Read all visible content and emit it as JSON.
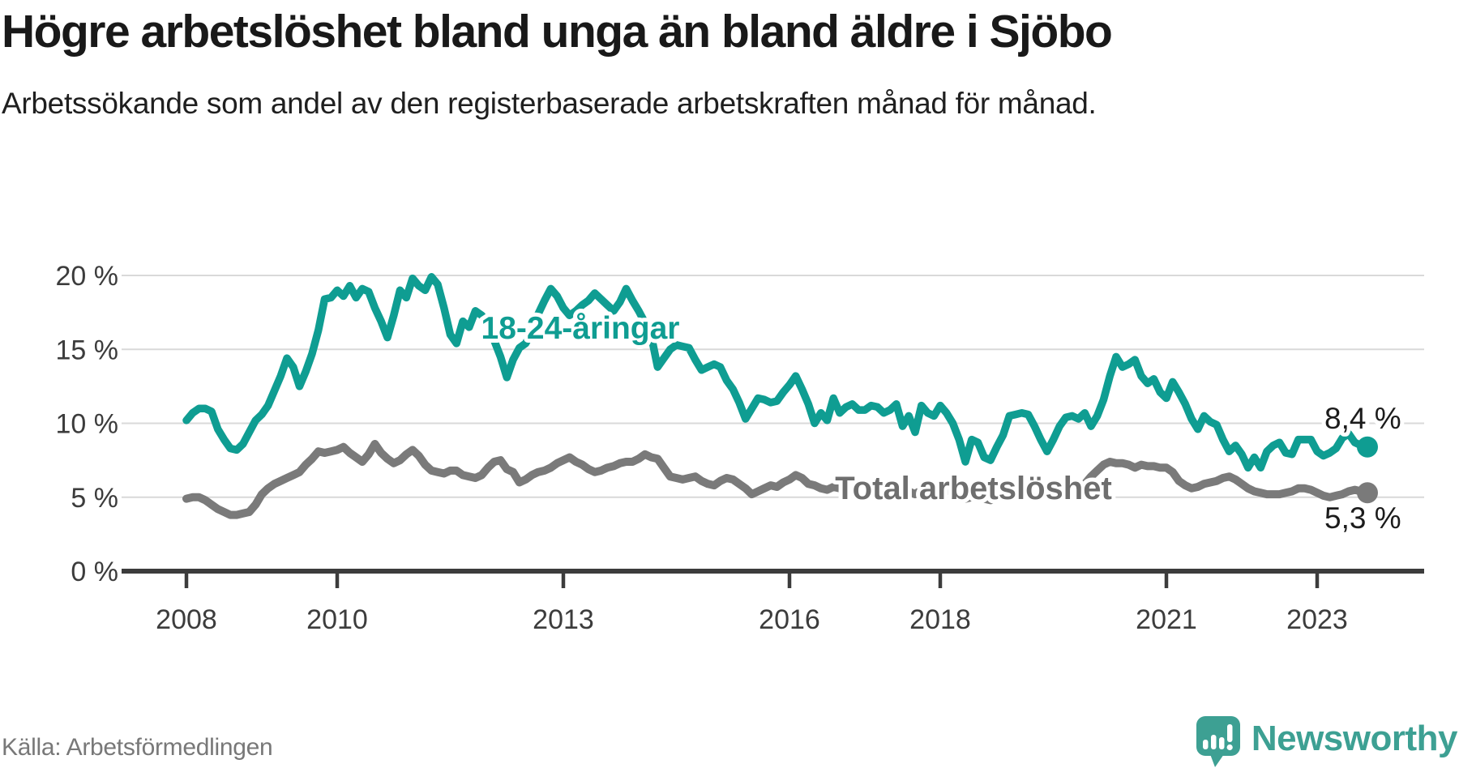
{
  "header": {
    "title": "Högre arbetslöshet bland unga än bland äldre i Sjöbo",
    "subtitle": "Arbetssökande som andel av den registerbaserade arbetskraften månad för månad."
  },
  "footer": {
    "source": "Källa: Arbetsförmedlingen",
    "brand_name": "Newsworthy",
    "brand_color": "#3da093"
  },
  "chart_data": {
    "type": "line",
    "x_start_year": 2008,
    "x_step_months": 1,
    "xlim": [
      2007.14,
      2024.42
    ],
    "ylim": [
      0,
      21.8
    ],
    "grid": true,
    "legend_position": "inline-labels",
    "yticks": {
      "values": [
        0,
        5,
        10,
        15,
        20
      ],
      "labels": [
        "0 %",
        "5 %",
        "10 %",
        "15 %",
        "20 %"
      ]
    },
    "xticks": {
      "values": [
        2008,
        2010,
        2013,
        2016,
        2018,
        2021,
        2023
      ],
      "labels": [
        "2008",
        "2010",
        "2013",
        "2016",
        "2018",
        "2021",
        "2023"
      ]
    },
    "grid_color": "#d9d9d9",
    "axis_color": "#3c3c3c",
    "tick_label_color": "#3c3c3c",
    "value_label_color": "#1c1c1c",
    "series": [
      {
        "name": "18-24-åringar",
        "color": "#0f9d92",
        "end_label": "8,4 %",
        "end_value": 8.4,
        "values": [
          10.2,
          10.7,
          11.0,
          11.0,
          10.8,
          9.6,
          8.9,
          8.3,
          8.2,
          8.6,
          9.4,
          10.2,
          10.6,
          11.2,
          12.2,
          13.2,
          14.4,
          13.8,
          12.5,
          13.5,
          14.7,
          16.3,
          18.4,
          18.5,
          19.0,
          18.6,
          19.3,
          18.5,
          19.1,
          18.9,
          17.8,
          16.9,
          15.8,
          17.3,
          19.0,
          18.5,
          19.8,
          19.3,
          19.0,
          19.9,
          19.4,
          17.8,
          16.0,
          15.4,
          16.9,
          16.5,
          17.6,
          17.3,
          16.8,
          15.6,
          14.5,
          13.1,
          14.3,
          15.1,
          15.4,
          16.2,
          17.4,
          18.3,
          19.1,
          18.6,
          17.8,
          17.3,
          17.6,
          18.0,
          18.3,
          18.8,
          18.4,
          18.0,
          17.6,
          18.2,
          19.1,
          18.3,
          17.6,
          16.8,
          15.9,
          13.8,
          14.4,
          15.0,
          15.3,
          15.2,
          15.1,
          14.3,
          13.6,
          13.8,
          14.0,
          13.8,
          12.9,
          12.3,
          11.4,
          10.3,
          11.0,
          11.7,
          11.6,
          11.4,
          11.5,
          12.1,
          12.6,
          13.2,
          12.3,
          11.3,
          10.0,
          10.7,
          10.2,
          11.7,
          10.7,
          11.1,
          11.3,
          10.9,
          10.9,
          11.2,
          11.1,
          10.7,
          10.9,
          11.3,
          9.8,
          10.5,
          9.4,
          11.2,
          10.7,
          10.5,
          11.2,
          10.7,
          10.0,
          8.9,
          7.4,
          8.9,
          8.7,
          7.7,
          7.5,
          8.4,
          9.2,
          10.5,
          10.6,
          10.7,
          10.6,
          9.8,
          8.9,
          8.1,
          8.9,
          9.8,
          10.4,
          10.5,
          10.3,
          10.7,
          9.8,
          10.5,
          11.6,
          13.2,
          14.5,
          13.8,
          14.0,
          14.3,
          13.2,
          12.7,
          13.0,
          12.1,
          11.7,
          12.8,
          12.1,
          11.3,
          10.3,
          9.6,
          10.5,
          10.1,
          9.9,
          8.9,
          8.1,
          8.5,
          7.9,
          7.0,
          7.7,
          7.0,
          8.1,
          8.5,
          8.7,
          8.0,
          7.9,
          8.9,
          8.9,
          8.9,
          8.1,
          7.8,
          8.0,
          8.3,
          9.0,
          9.3,
          8.7,
          8.5,
          8.4
        ]
      },
      {
        "name": "Total arbetslöshet",
        "color": "#7a7a7a",
        "end_label": "5,3 %",
        "end_value": 5.3,
        "values": [
          4.9,
          5.0,
          5.0,
          4.8,
          4.5,
          4.2,
          4.0,
          3.8,
          3.8,
          3.9,
          4.0,
          4.5,
          5.2,
          5.6,
          5.9,
          6.1,
          6.3,
          6.5,
          6.7,
          7.2,
          7.6,
          8.1,
          8.0,
          8.1,
          8.2,
          8.4,
          8.0,
          7.7,
          7.4,
          7.9,
          8.6,
          8.0,
          7.6,
          7.3,
          7.5,
          7.9,
          8.2,
          7.8,
          7.2,
          6.8,
          6.7,
          6.6,
          6.8,
          6.8,
          6.5,
          6.4,
          6.3,
          6.5,
          7.0,
          7.4,
          7.5,
          6.9,
          6.7,
          6.0,
          6.2,
          6.5,
          6.7,
          6.8,
          7.0,
          7.3,
          7.5,
          7.7,
          7.4,
          7.2,
          6.9,
          6.7,
          6.8,
          7.0,
          7.1,
          7.3,
          7.4,
          7.4,
          7.6,
          7.9,
          7.7,
          7.6,
          7.0,
          6.4,
          6.3,
          6.2,
          6.3,
          6.4,
          6.1,
          5.9,
          5.8,
          6.1,
          6.3,
          6.2,
          5.9,
          5.6,
          5.2,
          5.4,
          5.6,
          5.8,
          5.7,
          6.0,
          6.2,
          6.5,
          6.3,
          5.9,
          5.8,
          5.6,
          5.5,
          5.7,
          5.6,
          5.5,
          5.6,
          5.5,
          5.6,
          5.7,
          5.6,
          5.4,
          5.5,
          5.6,
          5.3,
          5.4,
          5.2,
          5.5,
          5.6,
          5.5,
          5.6,
          5.5,
          5.3,
          5.1,
          4.9,
          5.0,
          5.1,
          4.9,
          4.8,
          5.0,
          5.2,
          5.4,
          5.5,
          5.6,
          5.5,
          5.3,
          5.2,
          5.1,
          5.2,
          5.4,
          5.5,
          5.6,
          5.7,
          5.9,
          6.4,
          6.8,
          7.2,
          7.4,
          7.3,
          7.3,
          7.2,
          7.0,
          7.2,
          7.1,
          7.1,
          7.0,
          7.0,
          6.7,
          6.1,
          5.8,
          5.6,
          5.7,
          5.9,
          6.0,
          6.1,
          6.3,
          6.4,
          6.2,
          5.9,
          5.6,
          5.4,
          5.3,
          5.2,
          5.2,
          5.2,
          5.3,
          5.4,
          5.6,
          5.6,
          5.5,
          5.3,
          5.1,
          5.0,
          5.1,
          5.2,
          5.4,
          5.5,
          5.4,
          5.3
        ]
      }
    ]
  }
}
